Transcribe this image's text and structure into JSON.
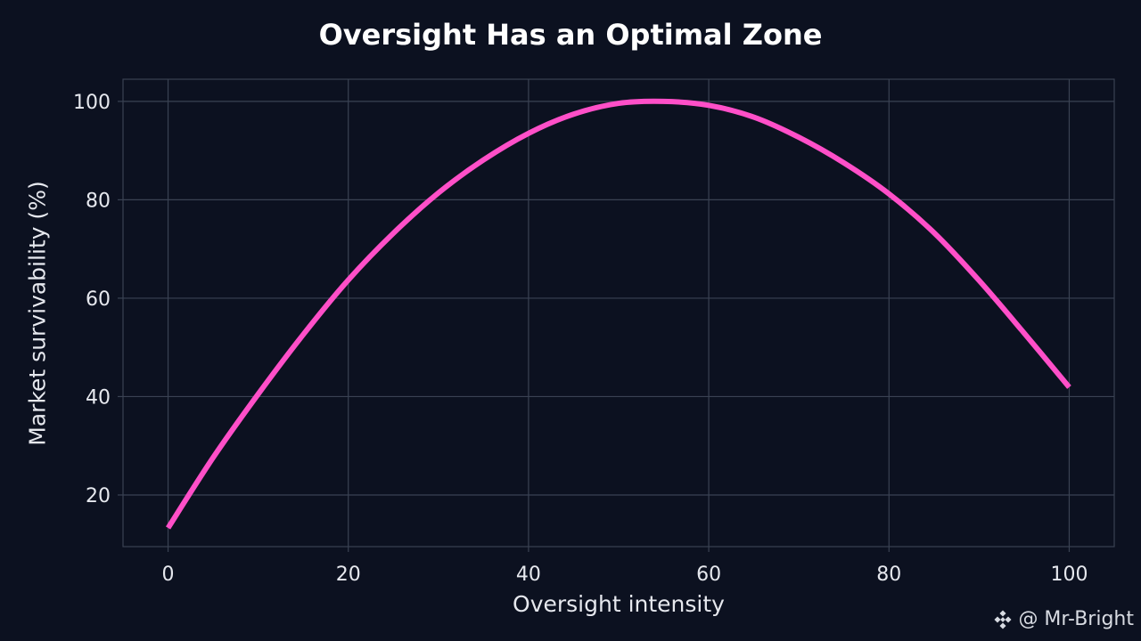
{
  "chart_data": {
    "type": "line",
    "title": "Oversight Has an Optimal Zone",
    "xlabel": "Oversight intensity",
    "ylabel": "Market survivability (%)",
    "xlim": [
      -5,
      105
    ],
    "ylim": [
      9.5,
      104.5
    ],
    "xticks": [
      0,
      20,
      40,
      60,
      80,
      100
    ],
    "yticks": [
      20,
      40,
      60,
      80,
      100
    ],
    "grid": true,
    "series": [
      {
        "name": "Market survivability",
        "color": "#ff4fc8",
        "x": [
          0,
          5,
          10,
          15,
          20,
          25,
          30,
          35,
          40,
          45,
          50,
          55,
          60,
          65,
          70,
          75,
          80,
          85,
          90,
          95,
          100
        ],
        "y": [
          13.3,
          27.6,
          40.5,
          52.6,
          63.7,
          73.2,
          81.4,
          88.1,
          93.5,
          97.4,
          99.6,
          100.0,
          99.2,
          96.8,
          92.7,
          87.5,
          81.2,
          73.3,
          63.6,
          52.9,
          41.9
        ]
      }
    ]
  },
  "watermark": {
    "text": "@ Mr-Bright",
    "icon": "diamond-logo-icon"
  },
  "colors": {
    "background": "#0c1120",
    "grid": "#3a4253",
    "line": "#ff4fc8",
    "text": "#e6e8ee"
  }
}
